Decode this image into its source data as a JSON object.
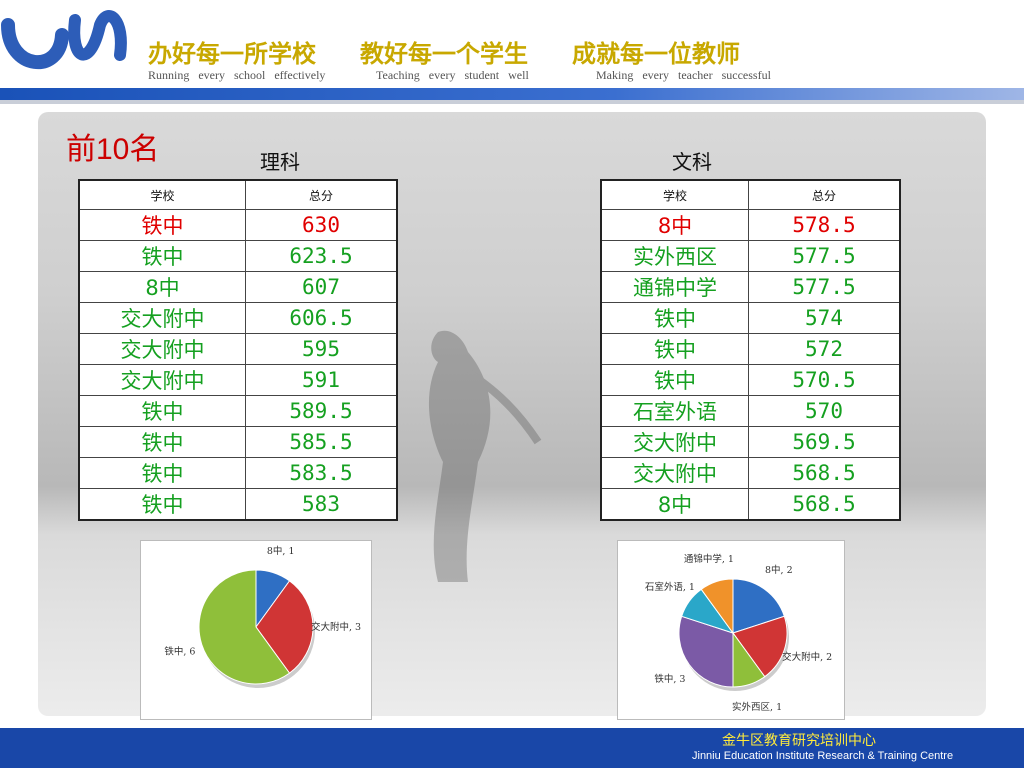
{
  "header": {
    "slogans": [
      "办好每一所学校",
      "教好每一个学生",
      "成就每一位教师"
    ],
    "slogans_en": [
      "Running   every   school   effectively",
      "Teaching   every   student   well",
      "Making   every   teacher   successful"
    ],
    "accent_color": "#c8a800"
  },
  "top10_label": "前10名",
  "science": {
    "title": "理科",
    "headers": [
      "学校",
      "总分"
    ],
    "rows": [
      {
        "school": "铁中",
        "score": "630"
      },
      {
        "school": "铁中",
        "score": "623.5"
      },
      {
        "school": "8中",
        "score": "607"
      },
      {
        "school": "交大附中",
        "score": "606.5"
      },
      {
        "school": "交大附中",
        "score": "595"
      },
      {
        "school": "交大附中",
        "score": "591"
      },
      {
        "school": "铁中",
        "score": "589.5"
      },
      {
        "school": "铁中",
        "score": "585.5"
      },
      {
        "school": "铁中",
        "score": "583.5"
      },
      {
        "school": "铁中",
        "score": "583"
      }
    ]
  },
  "arts": {
    "title": "文科",
    "headers": [
      "学校",
      "总分"
    ],
    "rows": [
      {
        "school": "8中",
        "score": "578.5"
      },
      {
        "school": "实外西区",
        "score": "577.5"
      },
      {
        "school": "通锦中学",
        "score": "577.5"
      },
      {
        "school": "铁中",
        "score": "574"
      },
      {
        "school": "铁中",
        "score": "572"
      },
      {
        "school": "铁中",
        "score": "570.5"
      },
      {
        "school": "石室外语",
        "score": "570"
      },
      {
        "school": "交大附中",
        "score": "569.5"
      },
      {
        "school": "交大附中",
        "score": "568.5"
      },
      {
        "school": "8中",
        "score": "568.5"
      }
    ]
  },
  "chart_data": [
    {
      "type": "pie",
      "slices": [
        {
          "label": "8中, 1",
          "value": 1,
          "color": "#2f6fc4"
        },
        {
          "label": "交大附中, 3",
          "value": 3,
          "color": "#d03535"
        },
        {
          "label": "铁中, 6",
          "value": 6,
          "color": "#8fbf3a"
        }
      ]
    },
    {
      "type": "pie",
      "slices": [
        {
          "label": "8中, 2",
          "value": 2,
          "color": "#2f6fc4"
        },
        {
          "label": "交大附中, 2",
          "value": 2,
          "color": "#d03535"
        },
        {
          "label": "实外西区, 1",
          "value": 1,
          "color": "#8fbf3a"
        },
        {
          "label": "铁中, 3",
          "value": 3,
          "color": "#7b5aa6"
        },
        {
          "label": "石室外语, 1",
          "value": 1,
          "color": "#2aa7c9"
        },
        {
          "label": "通锦中学, 1",
          "value": 1,
          "color": "#f0922a"
        }
      ]
    }
  ],
  "footer": {
    "org_cn": "金牛区教育研究培训中心",
    "org_en": "Jinniu Education Institute Research & Training Centre"
  }
}
